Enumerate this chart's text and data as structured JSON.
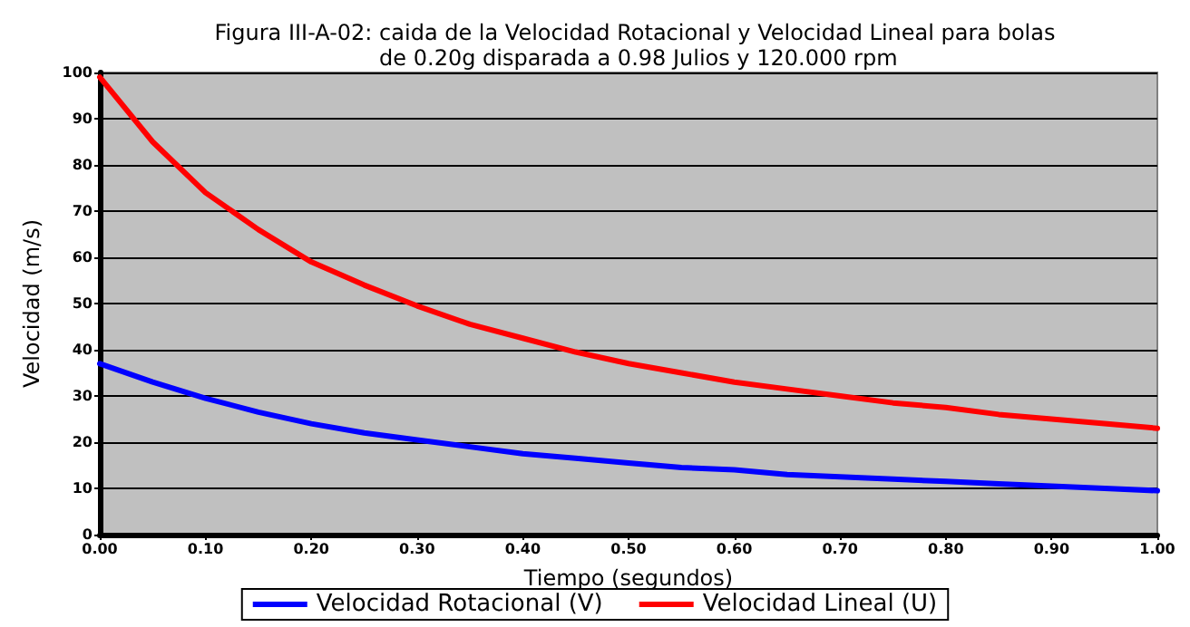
{
  "chart_data": {
    "type": "line",
    "title": "Figura III-A-02: caida de la Velocidad Rotacional y Velocidad Lineal para bolas de 0.20g disparada a 0.98 Julios y 120.000 rpm",
    "xlabel": "Tiempo (segundos)",
    "ylabel": "Velocidad (m/s)",
    "x": [
      0,
      0.05,
      0.1,
      0.15,
      0.2,
      0.25,
      0.3,
      0.35,
      0.4,
      0.45,
      0.5,
      0.55,
      0.6,
      0.65,
      0.7,
      0.75,
      0.8,
      0.85,
      0.9,
      0.95,
      1.0
    ],
    "series": [
      {
        "name": "Velocidad Rotacional (V)",
        "color": "#0000ff",
        "values": [
          37,
          33,
          29.5,
          26.5,
          24,
          22,
          20.5,
          19,
          17.5,
          16.5,
          15.5,
          14.5,
          14,
          13,
          12.5,
          12,
          11.5,
          11,
          10.5,
          10,
          9.5
        ]
      },
      {
        "name": "Velocidad Lineal (U)",
        "color": "#ff0000",
        "values": [
          99,
          85,
          74,
          66,
          59,
          54,
          49.5,
          45.5,
          42.5,
          39.5,
          37,
          35,
          33,
          31.5,
          30,
          28.5,
          27.5,
          26,
          25,
          24,
          23
        ]
      }
    ],
    "xlim": [
      0,
      1
    ],
    "xticks": [
      {
        "value": 0,
        "label": "0.00"
      },
      {
        "value": 0.1,
        "label": "0.10"
      },
      {
        "value": 0.2,
        "label": "0.20"
      },
      {
        "value": 0.3,
        "label": "0.30"
      },
      {
        "value": 0.4,
        "label": "0.40"
      },
      {
        "value": 0.5,
        "label": "0.50"
      },
      {
        "value": 0.6,
        "label": "0.60"
      },
      {
        "value": 0.7,
        "label": "0.70"
      },
      {
        "value": 0.8,
        "label": "0.80"
      },
      {
        "value": 0.9,
        "label": "0.90"
      },
      {
        "value": 1,
        "label": "1.00"
      }
    ],
    "ylim": [
      0,
      100
    ],
    "yticks": [
      0,
      10,
      20,
      30,
      40,
      50,
      60,
      70,
      80,
      90,
      100
    ],
    "grid": "y",
    "legend": "bottom",
    "marker": "none",
    "line_style": "solid"
  }
}
